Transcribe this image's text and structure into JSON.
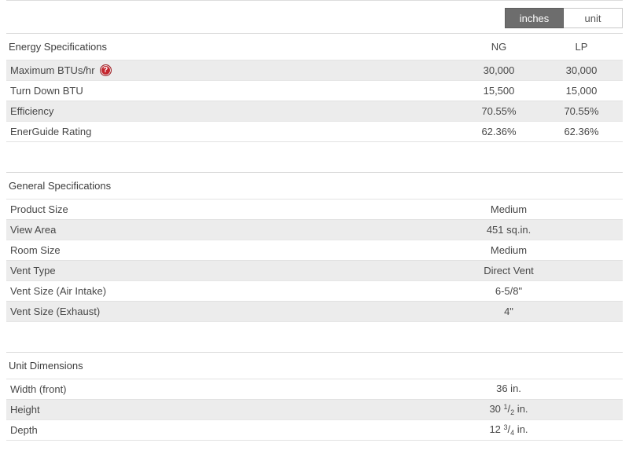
{
  "unit_toggle": {
    "options": [
      {
        "label": "inches",
        "active": true
      },
      {
        "label": "unit",
        "active": false
      }
    ]
  },
  "colors": {
    "toggle_active_bg": "#6d6d6d",
    "row_shade": "#ececec",
    "help_icon_red": "#c4262e"
  },
  "energy": {
    "title": "Energy Specifications",
    "columns": [
      "NG",
      "LP"
    ],
    "help_icon_glyph": "?",
    "rows": [
      {
        "label": "Maximum BTUs/hr",
        "has_help_icon": true,
        "ng": "30,000",
        "lp": "30,000"
      },
      {
        "label": "Turn Down BTU",
        "ng": "15,500",
        "lp": "15,000"
      },
      {
        "label": "Efficiency",
        "ng": "70.55%",
        "lp": "70.55%"
      },
      {
        "label": "EnerGuide Rating",
        "ng": "62.36%",
        "lp": "62.36%"
      }
    ]
  },
  "general": {
    "title": "General Specifications",
    "rows": [
      {
        "label": "Product Size",
        "value": "Medium"
      },
      {
        "label": "View Area",
        "value": "451 sq.in."
      },
      {
        "label": "Room Size",
        "value": "Medium"
      },
      {
        "label": "Vent Type",
        "value": "Direct Vent"
      },
      {
        "label": "Vent Size (Air Intake)",
        "value": "6-5/8\""
      },
      {
        "label": "Vent Size (Exhaust)",
        "value": "4\""
      }
    ]
  },
  "unit_dimensions": {
    "title": "Unit Dimensions",
    "rows": [
      {
        "label": "Width (front)",
        "value": {
          "pre": "36",
          "sup": "",
          "slash": "",
          "sub": "",
          "post": " in."
        }
      },
      {
        "label": "Height",
        "value": {
          "pre": "30 ",
          "sup": "1",
          "slash": "/",
          "sub": "2",
          "post": " in."
        }
      },
      {
        "label": "Depth",
        "value": {
          "pre": "12 ",
          "sup": "3",
          "slash": "/",
          "sub": "4",
          "post": " in."
        }
      }
    ]
  }
}
